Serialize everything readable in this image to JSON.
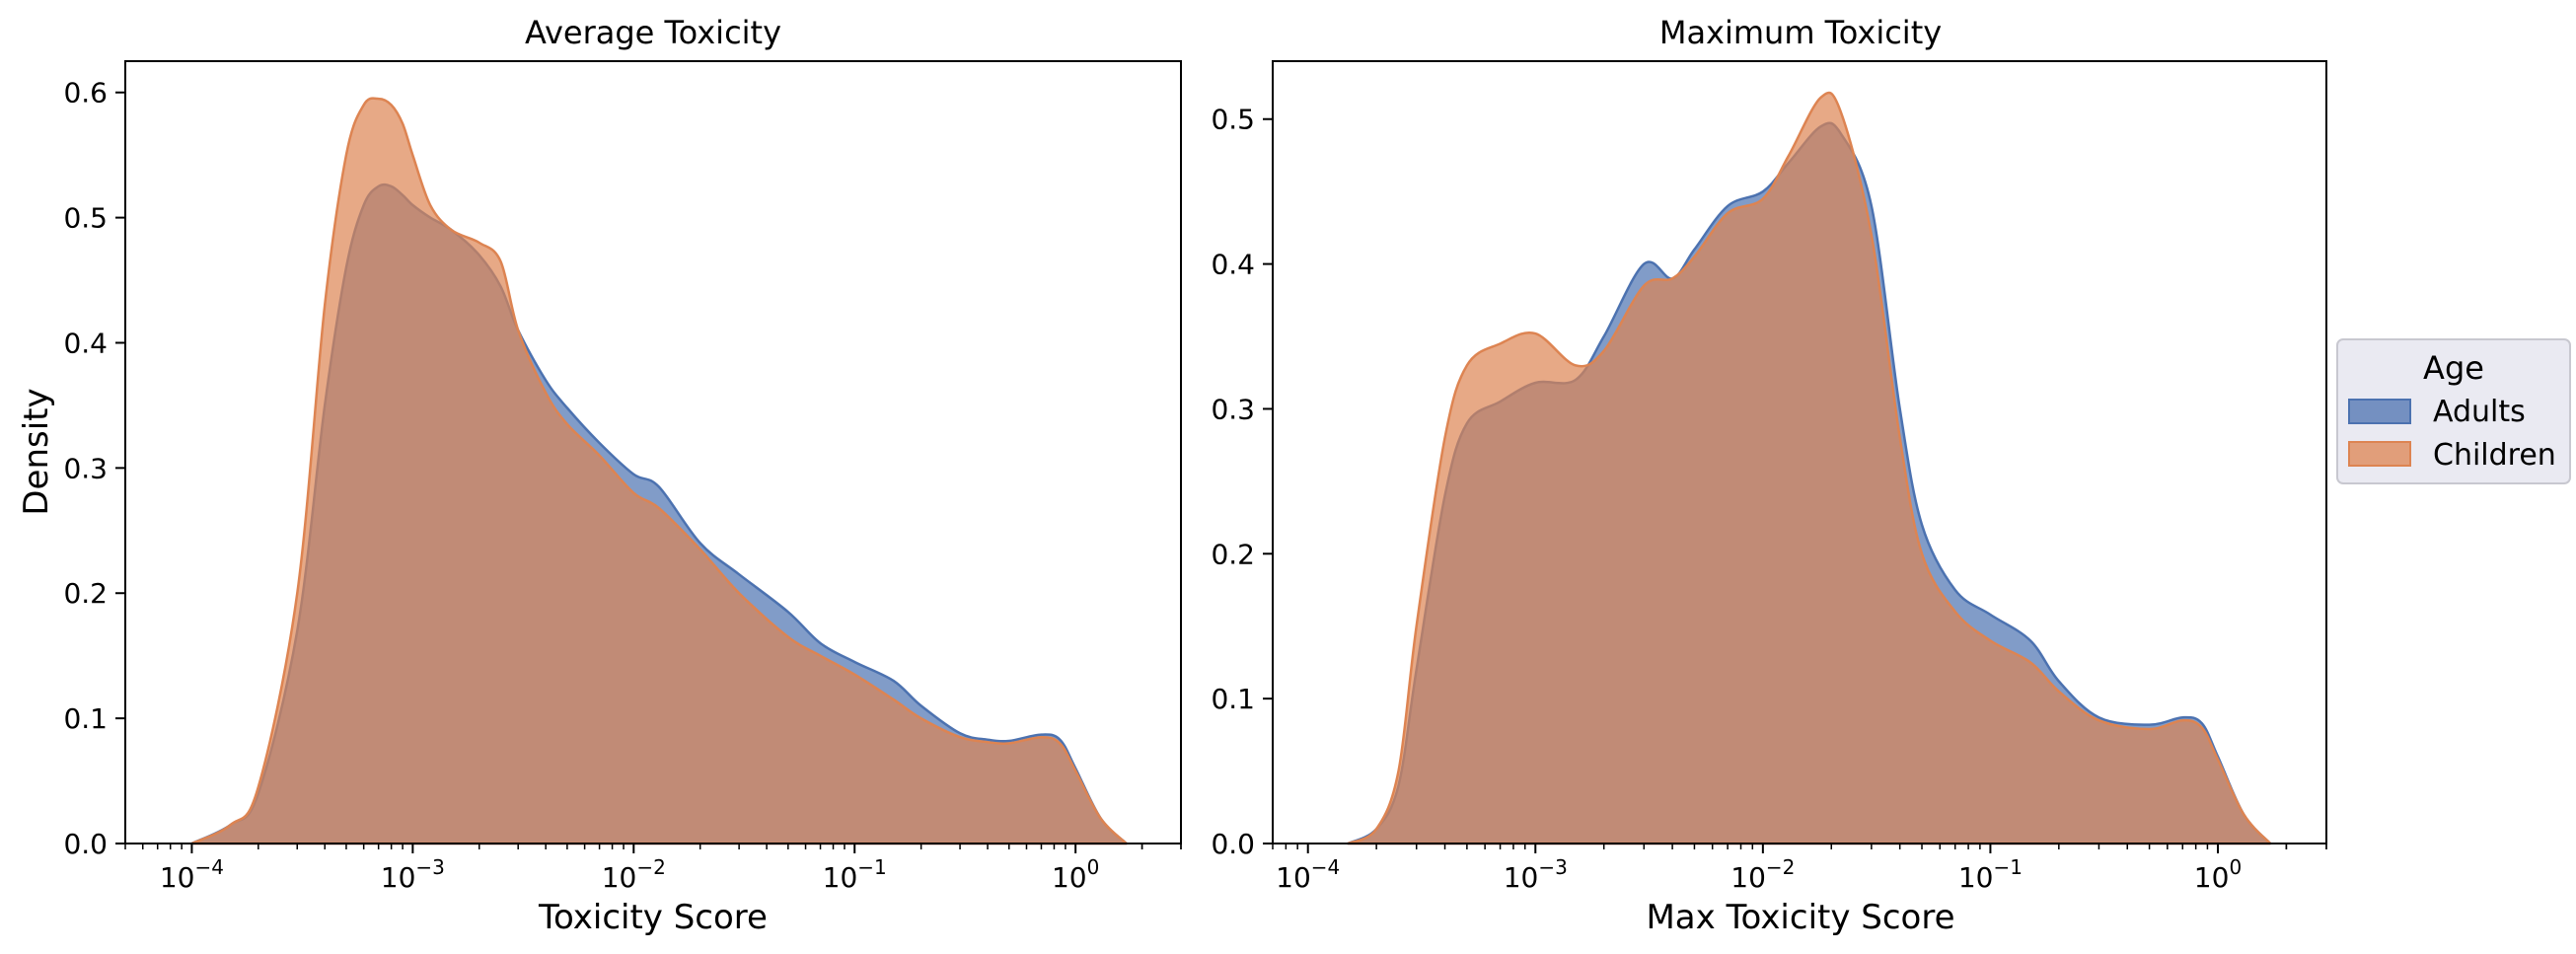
{
  "colors": {
    "adults": "#4c72b0",
    "children": "#dd8452",
    "legend_bg": "#eaeaf2"
  },
  "legend": {
    "title": "Age",
    "entries": [
      "Adults",
      "Children"
    ]
  },
  "shared_ylabel": "Density",
  "chart_data": [
    {
      "type": "area",
      "title": "Average Toxicity",
      "xlabel": "Toxicity Score",
      "ylabel": "Density",
      "x_scale": "log",
      "xlim": [
        5e-05,
        3.0
      ],
      "ylim": [
        0,
        0.625
      ],
      "x_ticks": [
        "10^-4",
        "10^-3",
        "10^-2",
        "10^-1",
        "10^0"
      ],
      "y_ticks": [
        "0.0",
        "0.1",
        "0.2",
        "0.3",
        "0.4",
        "0.5",
        "0.6"
      ],
      "series": [
        {
          "name": "Adults",
          "x": [
            0.0001,
            0.00015,
            0.0002,
            0.0003,
            0.0004,
            0.0005,
            0.0006,
            0.0007,
            0.0008,
            0.0009,
            0.001,
            0.0012,
            0.0015,
            0.002,
            0.0025,
            0.003,
            0.004,
            0.005,
            0.007,
            0.01,
            0.013,
            0.02,
            0.03,
            0.05,
            0.07,
            0.1,
            0.15,
            0.2,
            0.3,
            0.4,
            0.5,
            0.7,
            0.85,
            1.0,
            1.3,
            1.7
          ],
          "y": [
            0.0,
            0.015,
            0.04,
            0.17,
            0.35,
            0.46,
            0.51,
            0.525,
            0.525,
            0.518,
            0.51,
            0.5,
            0.49,
            0.47,
            0.445,
            0.41,
            0.37,
            0.348,
            0.32,
            0.295,
            0.285,
            0.24,
            0.215,
            0.185,
            0.16,
            0.145,
            0.13,
            0.11,
            0.088,
            0.083,
            0.082,
            0.087,
            0.083,
            0.06,
            0.02,
            0.0
          ]
        },
        {
          "name": "Children",
          "x": [
            0.0001,
            0.00015,
            0.0002,
            0.0003,
            0.0004,
            0.0005,
            0.0006,
            0.0007,
            0.0008,
            0.0009,
            0.001,
            0.0012,
            0.0015,
            0.002,
            0.0025,
            0.003,
            0.004,
            0.005,
            0.007,
            0.01,
            0.013,
            0.02,
            0.03,
            0.05,
            0.07,
            0.1,
            0.15,
            0.2,
            0.3,
            0.4,
            0.5,
            0.7,
            0.85,
            1.0,
            1.3,
            1.7
          ],
          "y": [
            0.0,
            0.015,
            0.045,
            0.2,
            0.43,
            0.55,
            0.59,
            0.595,
            0.59,
            0.575,
            0.55,
            0.51,
            0.49,
            0.48,
            0.465,
            0.41,
            0.36,
            0.335,
            0.31,
            0.28,
            0.268,
            0.235,
            0.2,
            0.165,
            0.15,
            0.135,
            0.115,
            0.1,
            0.085,
            0.081,
            0.08,
            0.085,
            0.08,
            0.058,
            0.02,
            0.0
          ]
        }
      ]
    },
    {
      "type": "area",
      "title": "Maximum Toxicity",
      "xlabel": "Max Toxicity Score",
      "ylabel": "",
      "x_scale": "log",
      "xlim": [
        7e-05,
        3.0
      ],
      "ylim": [
        0,
        0.54
      ],
      "x_ticks": [
        "10^-4",
        "10^-3",
        "10^-2",
        "10^-1",
        "10^0"
      ],
      "y_ticks": [
        "0.0",
        "0.1",
        "0.2",
        "0.3",
        "0.4",
        "0.5"
      ],
      "series": [
        {
          "name": "Adults",
          "x": [
            0.00015,
            0.0002,
            0.00025,
            0.0003,
            0.0004,
            0.0005,
            0.0007,
            0.001,
            0.0015,
            0.002,
            0.003,
            0.004,
            0.005,
            0.007,
            0.01,
            0.013,
            0.018,
            0.022,
            0.03,
            0.04,
            0.05,
            0.07,
            0.1,
            0.15,
            0.2,
            0.3,
            0.5,
            0.7,
            0.85,
            1.0,
            1.3,
            1.7
          ],
          "y": [
            0.0,
            0.01,
            0.04,
            0.12,
            0.24,
            0.29,
            0.305,
            0.318,
            0.32,
            0.35,
            0.4,
            0.39,
            0.41,
            0.44,
            0.45,
            0.47,
            0.495,
            0.49,
            0.44,
            0.3,
            0.22,
            0.175,
            0.158,
            0.14,
            0.112,
            0.087,
            0.082,
            0.087,
            0.083,
            0.06,
            0.02,
            0.0
          ]
        },
        {
          "name": "Children",
          "x": [
            0.00015,
            0.0002,
            0.00025,
            0.0003,
            0.0004,
            0.0005,
            0.0007,
            0.001,
            0.0015,
            0.002,
            0.003,
            0.004,
            0.005,
            0.007,
            0.01,
            0.013,
            0.018,
            0.022,
            0.03,
            0.04,
            0.05,
            0.07,
            0.1,
            0.15,
            0.2,
            0.3,
            0.5,
            0.7,
            0.85,
            1.0,
            1.3,
            1.7
          ],
          "y": [
            0.0,
            0.01,
            0.05,
            0.15,
            0.28,
            0.33,
            0.345,
            0.352,
            0.33,
            0.34,
            0.385,
            0.39,
            0.405,
            0.435,
            0.445,
            0.475,
            0.515,
            0.505,
            0.42,
            0.28,
            0.2,
            0.16,
            0.14,
            0.125,
            0.105,
            0.085,
            0.079,
            0.085,
            0.08,
            0.058,
            0.02,
            0.0
          ]
        }
      ]
    }
  ]
}
